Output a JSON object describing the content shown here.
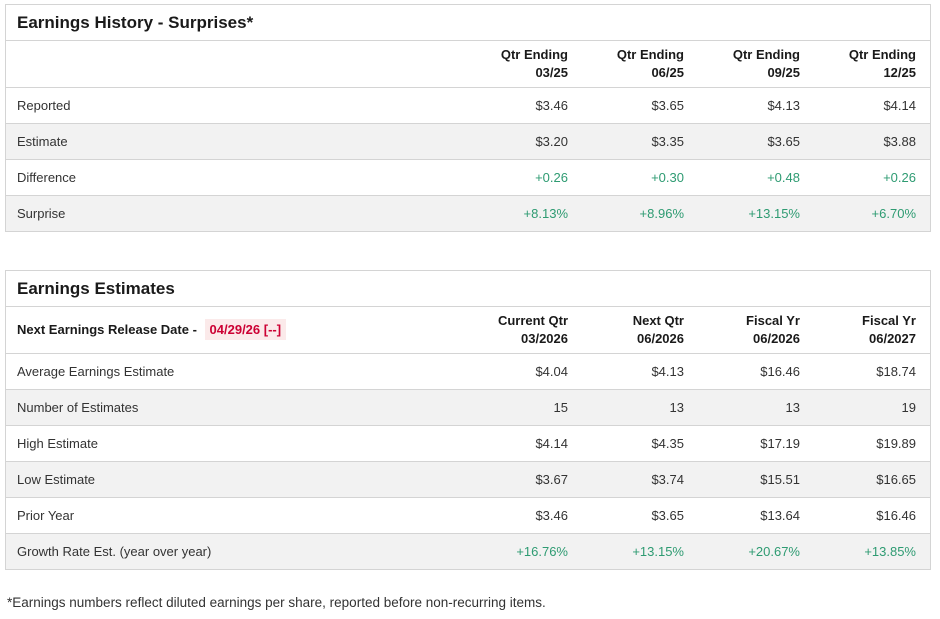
{
  "colors": {
    "positive": "#2e9b72",
    "alert-red": "#cc0033",
    "alert-bg": "#fbeaea"
  },
  "earnings_history": {
    "title": "Earnings History - Surprises*",
    "columns": [
      {
        "line1": "Qtr Ending",
        "line2": "03/25"
      },
      {
        "line1": "Qtr Ending",
        "line2": "06/25"
      },
      {
        "line1": "Qtr Ending",
        "line2": "09/25"
      },
      {
        "line1": "Qtr Ending",
        "line2": "12/25"
      }
    ],
    "rows": [
      {
        "label": "Reported",
        "values": [
          "$3.46",
          "$3.65",
          "$4.13",
          "$4.14"
        ]
      },
      {
        "label": "Estimate",
        "values": [
          "$3.20",
          "$3.35",
          "$3.65",
          "$3.88"
        ]
      },
      {
        "label": "Difference",
        "values": [
          "+0.26",
          "+0.30",
          "+0.48",
          "+0.26"
        ]
      },
      {
        "label": "Surprise",
        "values": [
          "+8.13%",
          "+8.96%",
          "+13.15%",
          "+6.70%"
        ]
      }
    ]
  },
  "earnings_estimates": {
    "title": "Earnings Estimates",
    "release_date_label": "Next Earnings Release Date -",
    "release_date_value": "04/29/26 [--]",
    "columns": [
      {
        "line1": "Current Qtr",
        "line2": "03/2026"
      },
      {
        "line1": "Next Qtr",
        "line2": "06/2026"
      },
      {
        "line1": "Fiscal Yr",
        "line2": "06/2026"
      },
      {
        "line1": "Fiscal Yr",
        "line2": "06/2027"
      }
    ],
    "rows": [
      {
        "label": "Average Earnings Estimate",
        "values": [
          "$4.04",
          "$4.13",
          "$16.46",
          "$18.74"
        ]
      },
      {
        "label": "Number of Estimates",
        "values": [
          "15",
          "13",
          "13",
          "19"
        ]
      },
      {
        "label": "High Estimate",
        "values": [
          "$4.14",
          "$4.35",
          "$17.19",
          "$19.89"
        ]
      },
      {
        "label": "Low Estimate",
        "values": [
          "$3.67",
          "$3.74",
          "$15.51",
          "$16.65"
        ]
      },
      {
        "label": "Prior Year",
        "values": [
          "$3.46",
          "$3.65",
          "$13.64",
          "$16.46"
        ]
      },
      {
        "label": "Growth Rate Est. (year over year)",
        "values": [
          "+16.76%",
          "+13.15%",
          "+20.67%",
          "+13.85%"
        ]
      }
    ]
  },
  "footnote": "*Earnings numbers reflect diluted earnings per share, reported before non-recurring items."
}
